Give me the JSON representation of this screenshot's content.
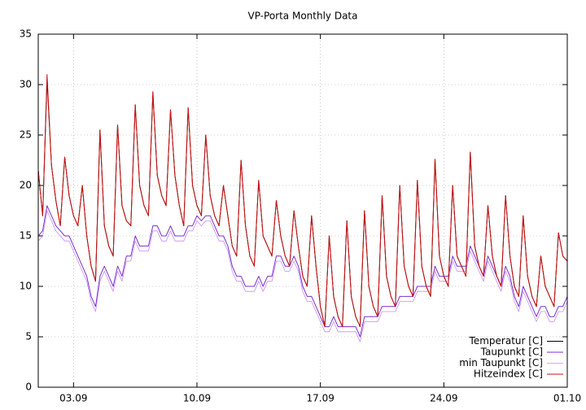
{
  "chart_data": {
    "type": "line",
    "title": "VP-Porta Monthly Data",
    "x": [
      0,
      0.25,
      0.5,
      0.75,
      1,
      1.25,
      1.5,
      1.75,
      2,
      2.25,
      2.5,
      2.75,
      3,
      3.25,
      3.5,
      3.75,
      4,
      4.25,
      4.5,
      4.75,
      5,
      5.25,
      5.5,
      5.75,
      6,
      6.25,
      6.5,
      6.75,
      7,
      7.25,
      7.5,
      7.75,
      8,
      8.25,
      8.5,
      8.75,
      9,
      9.25,
      9.5,
      9.75,
      10,
      10.25,
      10.5,
      10.75,
      11,
      11.25,
      11.5,
      11.75,
      12,
      12.25,
      12.5,
      12.75,
      13,
      13.25,
      13.5,
      13.75,
      14,
      14.25,
      14.5,
      14.75,
      15,
      15.25,
      15.5,
      15.75,
      16,
      16.25,
      16.5,
      16.75,
      17,
      17.25,
      17.5,
      17.75,
      18,
      18.25,
      18.5,
      18.75,
      19,
      19.25,
      19.5,
      19.75,
      20,
      20.25,
      20.5,
      20.75,
      21,
      21.25,
      21.5,
      21.75,
      22,
      22.25,
      22.5,
      22.75,
      23,
      23.25,
      23.5,
      23.75,
      24,
      24.25,
      24.5,
      24.75,
      25,
      25.25,
      25.5,
      25.75,
      26,
      26.25,
      26.5,
      26.75,
      27,
      27.25,
      27.5,
      27.75,
      28,
      28.25,
      28.5,
      28.75,
      29,
      29.25,
      29.5,
      29.75,
      30
    ],
    "series": [
      {
        "name": "Temperatur [C]",
        "color": "#000000",
        "width": 1,
        "values": [
          21.5,
          17,
          30.5,
          22,
          18.5,
          16,
          22.8,
          19,
          17,
          16,
          20,
          15,
          12,
          10.5,
          25.5,
          16,
          14,
          13,
          26,
          18,
          16.5,
          16,
          28,
          20,
          18,
          17,
          29.2,
          21,
          19,
          18,
          27.5,
          21,
          18,
          16,
          27.7,
          20,
          18,
          17,
          25,
          19,
          17,
          16,
          20,
          17,
          14,
          13,
          22.5,
          16,
          13,
          12,
          20.5,
          15,
          14,
          13,
          18.5,
          15,
          13,
          12,
          17.5,
          14,
          11,
          10,
          17,
          12,
          8,
          6,
          15,
          9,
          7,
          6,
          16.5,
          9,
          7,
          6,
          17.5,
          10,
          8,
          7,
          19,
          11,
          9,
          8,
          20,
          12,
          10,
          9,
          20.5,
          12,
          10,
          9,
          22.6,
          13,
          11,
          10,
          20,
          13,
          12,
          11,
          23.3,
          14,
          12,
          11,
          18,
          13,
          11,
          10,
          19,
          13,
          10,
          9,
          17,
          11,
          9,
          8,
          13,
          10,
          9,
          8,
          15.3,
          13,
          12.5
        ]
      },
      {
        "name": "Taupunkt [C]",
        "color": "#7b2fcf",
        "width": 1,
        "values": [
          15,
          15.5,
          18,
          17,
          16,
          15.5,
          15,
          15,
          14,
          13,
          12,
          11,
          9,
          8,
          11,
          12,
          11,
          10,
          12,
          11,
          13,
          13,
          15,
          14,
          14,
          14,
          16,
          16,
          15,
          15,
          16,
          15,
          15,
          15,
          16,
          16,
          17,
          16.5,
          17,
          17,
          16,
          15,
          15,
          14,
          12,
          11,
          11,
          10,
          10,
          10,
          11,
          10,
          11,
          11,
          13,
          13,
          12,
          12,
          13,
          12,
          10,
          9,
          9,
          8,
          7,
          6,
          6,
          7,
          6,
          6,
          6,
          6,
          6,
          5,
          7,
          7,
          7,
          7,
          8,
          8,
          8,
          8,
          9,
          9,
          9,
          9,
          10,
          10,
          10,
          10,
          12,
          11,
          11,
          11,
          13,
          12,
          12,
          12,
          14,
          13,
          12,
          11,
          13,
          12,
          11,
          10,
          12,
          11,
          9,
          8,
          10,
          9,
          8,
          7,
          8,
          8,
          7,
          7,
          8,
          8,
          9
        ]
      },
      {
        "name": "min Taupunkt [C]",
        "color": "#c58cff",
        "width": 0.8,
        "values": [
          14.5,
          15,
          17.5,
          16.5,
          15.5,
          15,
          14.5,
          14.5,
          13.5,
          12.5,
          11.5,
          10.5,
          8.5,
          7.5,
          10.5,
          11.5,
          10.5,
          9.5,
          11.5,
          10.5,
          12.5,
          12.5,
          14.5,
          13.5,
          13.5,
          13.5,
          15.5,
          15.5,
          14.5,
          14.5,
          15.5,
          14.5,
          14.5,
          14.5,
          15.5,
          15.5,
          16.5,
          16,
          16.5,
          16.5,
          15.5,
          14.5,
          14.5,
          13.5,
          11.5,
          10.5,
          10.5,
          9.5,
          9.5,
          9.5,
          10.5,
          9.5,
          10.5,
          10.5,
          12.5,
          12.5,
          11.5,
          11.5,
          12.5,
          11.5,
          9.5,
          8.5,
          8.5,
          7.5,
          6.5,
          5.5,
          5.5,
          6.5,
          5.5,
          5.5,
          5.5,
          5.5,
          5.5,
          4.5,
          6.5,
          6.5,
          6.5,
          6.5,
          7.5,
          7.5,
          7.5,
          7.5,
          8.5,
          8.5,
          8.5,
          8.5,
          9.5,
          9.5,
          9.5,
          9.5,
          11.5,
          10.5,
          10.5,
          10.5,
          12.5,
          11.5,
          11.5,
          11.5,
          13.5,
          12.5,
          11.5,
          10.5,
          12.5,
          11.5,
          10.5,
          9.5,
          11.5,
          10.5,
          8.5,
          7.5,
          9.5,
          8.5,
          7.5,
          6.5,
          7.5,
          7.5,
          6.5,
          6.5,
          7.5,
          7.5,
          8.5
        ]
      },
      {
        "name": "Hitzeindex [C]",
        "color": "#d01010",
        "width": 1,
        "values": [
          21.5,
          17,
          31,
          22,
          18.5,
          16,
          22.8,
          19,
          17,
          16,
          20,
          15,
          12,
          10.5,
          25.5,
          16,
          14,
          13,
          26,
          18,
          16.5,
          16,
          28,
          20,
          18,
          17,
          29.3,
          21,
          19,
          18,
          27.5,
          21,
          18,
          16,
          27.7,
          20,
          18,
          17,
          25,
          19,
          17,
          16,
          20,
          17,
          14,
          13,
          22.5,
          16,
          13,
          12,
          20.5,
          15,
          14,
          13,
          18.5,
          15,
          13,
          12,
          17.5,
          14,
          11,
          10,
          17,
          12,
          8,
          6,
          15,
          9,
          7,
          6,
          16.5,
          9,
          7,
          6,
          17.5,
          10,
          8,
          7,
          19,
          11,
          9,
          8,
          20,
          12,
          10,
          9,
          20.5,
          12,
          10,
          9,
          22.6,
          13,
          11,
          10,
          20,
          13,
          12,
          11,
          23.3,
          14,
          12,
          11,
          18,
          13,
          11,
          10,
          19,
          13,
          10,
          9,
          17,
          11,
          9,
          8,
          13,
          10,
          9,
          8,
          15.3,
          13,
          12.5
        ]
      }
    ],
    "xlim": [
      0,
      30
    ],
    "xticks": [
      {
        "value": 2,
        "label": "03.09"
      },
      {
        "value": 9,
        "label": "10.09"
      },
      {
        "value": 16,
        "label": "17.09"
      },
      {
        "value": 23,
        "label": "24.09"
      },
      {
        "value": 30,
        "label": "01.10"
      }
    ],
    "ylim": [
      0,
      35
    ],
    "yticks": [
      0,
      5,
      10,
      15,
      20,
      25,
      30,
      35
    ],
    "grid": true,
    "legend": "bottom-right"
  }
}
